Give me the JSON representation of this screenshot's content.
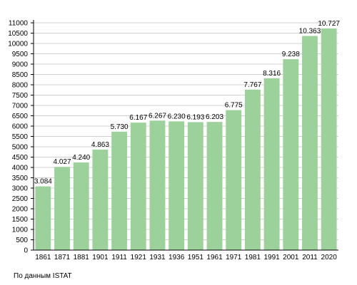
{
  "chart_data": {
    "type": "bar",
    "categories": [
      "1861",
      "1871",
      "1881",
      "1901",
      "1911",
      "1921",
      "1931",
      "1936",
      "1951",
      "1961",
      "1971",
      "1981",
      "1991",
      "2001",
      "2011",
      "2020"
    ],
    "values": [
      3084,
      4027,
      4240,
      4863,
      5730,
      6167,
      6267,
      6230,
      6193,
      6203,
      6775,
      7767,
      8316,
      9238,
      10363,
      10727
    ],
    "data_labels": [
      "3.084",
      "4.027",
      "4.240",
      "4.863",
      "5.730",
      "6.167",
      "6.267",
      "6.230",
      "6.193",
      "6.203",
      "6.775",
      "7.767",
      "8.316",
      "9.238",
      "10.363",
      "10.727"
    ],
    "ylim": [
      0,
      11000
    ],
    "y_step": 500,
    "grid": true,
    "bar_color": "#9dd19b",
    "grid_color": "#c0c0c0",
    "title": "",
    "xlabel": "",
    "ylabel": ""
  },
  "source_note": "По данным  ISTAT"
}
